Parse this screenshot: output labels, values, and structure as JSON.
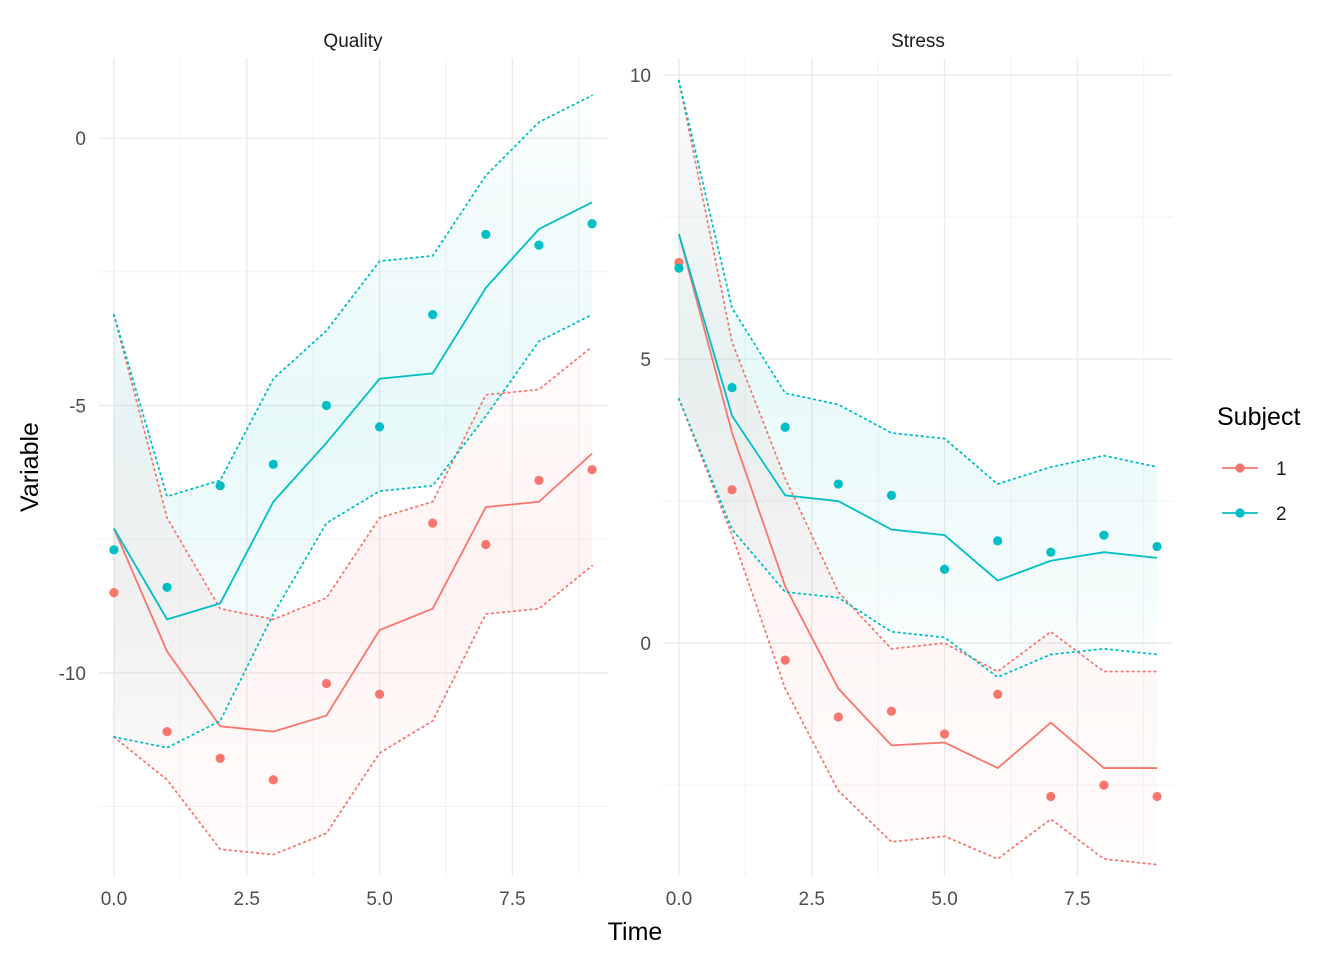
{
  "chart_data": {
    "type": "line",
    "xlabel": "Time",
    "ylabel": "Variable",
    "legend": {
      "title": "Subject",
      "placement": "right",
      "entries": [
        "1",
        "2"
      ]
    },
    "colors": {
      "1": "#F8766D",
      "2": "#00BFC4"
    },
    "grid": true,
    "panels": [
      {
        "title": "Quality",
        "xlim": [
          -0.3,
          9.3
        ],
        "ylim": [
          -13.8,
          1.5
        ],
        "xticks": [
          0,
          2.5,
          5,
          7.5
        ],
        "xtick_labels": [
          "0.0",
          "2.5",
          "5.0",
          "7.5"
        ],
        "yticks": [
          0,
          -5,
          -10
        ],
        "ytick_labels": [
          "0",
          "-5",
          "-10"
        ],
        "series": [
          {
            "name": "1",
            "x": [
              0,
              1,
              2,
              3,
              4,
              5,
              6,
              7,
              8,
              9
            ],
            "points": [
              -8.5,
              -11.1,
              -11.6,
              -12.0,
              -10.2,
              -10.4,
              -7.2,
              -7.6,
              -6.4,
              -6.2
            ],
            "fit": [
              -7.3,
              -9.6,
              -11.0,
              -11.1,
              -10.8,
              -9.2,
              -8.8,
              -6.9,
              -6.8,
              -5.9
            ],
            "lower": [
              -11.2,
              -12.0,
              -13.3,
              -13.4,
              -13.0,
              -11.5,
              -10.9,
              -8.9,
              -8.8,
              -8.0
            ],
            "upper": [
              -3.3,
              -7.1,
              -8.8,
              -9.0,
              -8.6,
              -7.1,
              -6.8,
              -4.8,
              -4.7,
              -3.9
            ]
          },
          {
            "name": "2",
            "x": [
              0,
              1,
              2,
              3,
              4,
              5,
              6,
              7,
              8,
              9
            ],
            "points": [
              -7.7,
              -8.4,
              -6.5,
              -6.1,
              -5.0,
              -5.4,
              -3.3,
              -1.8,
              -2.0,
              -1.6
            ],
            "fit": [
              -7.3,
              -9.0,
              -8.7,
              -6.8,
              -5.7,
              -4.5,
              -4.4,
              -2.8,
              -1.7,
              -1.2
            ],
            "lower": [
              -11.2,
              -11.4,
              -10.9,
              -8.9,
              -7.2,
              -6.6,
              -6.5,
              -5.2,
              -3.8,
              -3.3
            ],
            "upper": [
              -3.3,
              -6.7,
              -6.4,
              -4.5,
              -3.6,
              -2.3,
              -2.2,
              -0.7,
              0.3,
              0.8
            ]
          }
        ]
      },
      {
        "title": "Stress",
        "xlim": [
          -0.3,
          9.3
        ],
        "ylim": [
          -4.1,
          10.3
        ],
        "xticks": [
          0,
          2.5,
          5,
          7.5
        ],
        "xtick_labels": [
          "0.0",
          "2.5",
          "5.0",
          "7.5"
        ],
        "yticks": [
          10,
          5,
          0
        ],
        "ytick_labels": [
          "10",
          "5",
          "0"
        ],
        "series": [
          {
            "name": "1",
            "x": [
              0,
              1,
              2,
              3,
              4,
              5,
              6,
              7,
              8,
              9
            ],
            "points": [
              6.7,
              2.7,
              -0.3,
              -1.3,
              -1.2,
              -1.6,
              -0.9,
              -2.7,
              -2.5,
              -2.7
            ],
            "fit": [
              7.2,
              3.7,
              1.0,
              -0.8,
              -1.8,
              -1.75,
              -2.2,
              -1.4,
              -2.2,
              -2.2
            ],
            "lower": [
              4.3,
              1.9,
              -0.8,
              -2.6,
              -3.5,
              -3.4,
              -3.8,
              -3.1,
              -3.8,
              -3.9
            ],
            "upper": [
              9.9,
              5.3,
              2.9,
              0.9,
              -0.1,
              0.0,
              -0.5,
              0.2,
              -0.5,
              -0.5
            ]
          },
          {
            "name": "2",
            "x": [
              0,
              1,
              2,
              3,
              4,
              5,
              6,
              7,
              8,
              9
            ],
            "points": [
              6.6,
              4.5,
              3.8,
              2.8,
              2.6,
              1.3,
              1.8,
              1.6,
              1.9,
              1.7
            ],
            "fit": [
              7.2,
              4.0,
              2.6,
              2.5,
              2.0,
              1.9,
              1.1,
              1.45,
              1.6,
              1.5
            ],
            "lower": [
              4.3,
              2.0,
              0.9,
              0.8,
              0.2,
              0.1,
              -0.6,
              -0.2,
              -0.1,
              -0.2
            ],
            "upper": [
              9.9,
              5.9,
              4.4,
              4.2,
              3.7,
              3.6,
              2.8,
              3.1,
              3.3,
              3.1
            ]
          }
        ]
      }
    ]
  }
}
